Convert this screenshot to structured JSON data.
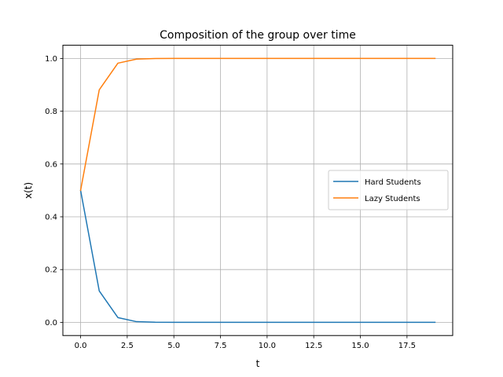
{
  "chart_data": {
    "type": "line",
    "title": "Composition of the group over time",
    "xlabel": "t",
    "ylabel": "x(t)",
    "xlim": [
      -0.95,
      19.95
    ],
    "ylim": [
      -0.05,
      1.05
    ],
    "grid": true,
    "legend_position": "center-right",
    "x": [
      0,
      1,
      2,
      3,
      4,
      5,
      6,
      7,
      8,
      9,
      10,
      11,
      12,
      13,
      14,
      15,
      16,
      17,
      18,
      19
    ],
    "series": [
      {
        "name": "Hard Students",
        "color": "#1f77b4",
        "values": [
          0.5,
          0.119,
          0.018,
          0.0025,
          0.0003,
          0.0,
          0.0,
          0.0,
          0.0,
          0.0,
          0.0,
          0.0,
          0.0,
          0.0,
          0.0,
          0.0,
          0.0,
          0.0,
          0.0,
          0.0
        ]
      },
      {
        "name": "Lazy Students",
        "color": "#ff7f0e",
        "values": [
          0.5,
          0.881,
          0.982,
          0.9975,
          0.9997,
          1.0,
          1.0,
          1.0,
          1.0,
          1.0,
          1.0,
          1.0,
          1.0,
          1.0,
          1.0,
          1.0,
          1.0,
          1.0,
          1.0,
          1.0
        ]
      }
    ],
    "xticks": [
      {
        "value": 0,
        "label": "0.0"
      },
      {
        "value": 2.5,
        "label": "2.5"
      },
      {
        "value": 5,
        "label": "5.0"
      },
      {
        "value": 7.5,
        "label": "7.5"
      },
      {
        "value": 10,
        "label": "10.0"
      },
      {
        "value": 12.5,
        "label": "12.5"
      },
      {
        "value": 15,
        "label": "15.0"
      },
      {
        "value": 17.5,
        "label": "17.5"
      }
    ],
    "yticks": [
      {
        "value": 0,
        "label": "0.0"
      },
      {
        "value": 0.2,
        "label": "0.2"
      },
      {
        "value": 0.4,
        "label": "0.4"
      },
      {
        "value": 0.6,
        "label": "0.6"
      },
      {
        "value": 0.8,
        "label": "0.8"
      },
      {
        "value": 1.0,
        "label": "1.0"
      }
    ]
  }
}
